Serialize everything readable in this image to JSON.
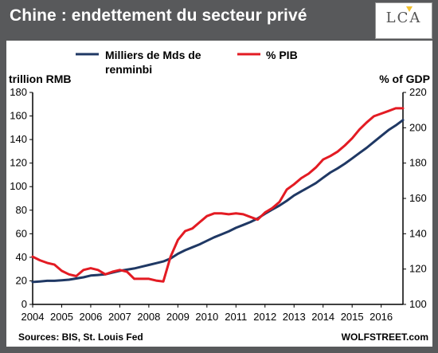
{
  "header": {
    "title": "Chine : endettement du secteur privé",
    "logo_text": "LCA"
  },
  "colors": {
    "frame": "#58595b",
    "series_debt": "#1f3864",
    "series_gdp": "#e31b23",
    "logo_accent": "#f2c12e"
  },
  "chart_data": {
    "type": "line",
    "title": "",
    "ylabel_left": "trillion RMB",
    "ylabel_right": "% of GDP",
    "xlabel": "",
    "ylim_left": [
      0,
      180
    ],
    "ylim_right": [
      100,
      220
    ],
    "yticks_left": [
      0,
      20,
      40,
      60,
      80,
      100,
      120,
      140,
      160,
      180
    ],
    "yticks_right": [
      100,
      120,
      140,
      160,
      180,
      200,
      220
    ],
    "xlim": [
      2004.0,
      2016.75
    ],
    "x_tick_labels": [
      "2004",
      "2005",
      "2006",
      "2007",
      "2008",
      "2009",
      "2010",
      "2011",
      "2012",
      "2013",
      "2014",
      "2015",
      "2016"
    ],
    "grid": false,
    "legend_position": "top",
    "source": "Sources: BIS, St. Louis Fed",
    "watermark": "WOLFSTREET.com",
    "series": [
      {
        "name": "Milliers de Mds de renminbi",
        "axis": "left",
        "color": "#1f3864",
        "x": [
          2004.0,
          2004.25,
          2004.5,
          2004.75,
          2005.0,
          2005.25,
          2005.5,
          2005.75,
          2006.0,
          2006.25,
          2006.5,
          2006.75,
          2007.0,
          2007.25,
          2007.5,
          2007.75,
          2008.0,
          2008.25,
          2008.5,
          2008.75,
          2009.0,
          2009.25,
          2009.5,
          2009.75,
          2010.0,
          2010.25,
          2010.5,
          2010.75,
          2011.0,
          2011.25,
          2011.5,
          2011.75,
          2012.0,
          2012.25,
          2012.5,
          2012.75,
          2013.0,
          2013.25,
          2013.5,
          2013.75,
          2014.0,
          2014.25,
          2014.5,
          2014.75,
          2015.0,
          2015.25,
          2015.5,
          2015.75,
          2016.0,
          2016.25,
          2016.5,
          2016.75
        ],
        "values": [
          19,
          19.5,
          20,
          20,
          20.5,
          21,
          22,
          23,
          24.5,
          25,
          25.5,
          27,
          28.5,
          29.5,
          30.5,
          32,
          33.5,
          35,
          36.5,
          39,
          43,
          46,
          48.5,
          51,
          54,
          57,
          59.5,
          62,
          65,
          67.5,
          70,
          73,
          77,
          80.5,
          84,
          88,
          92.5,
          96,
          99.5,
          103,
          107.5,
          112,
          115.5,
          119.5,
          124,
          128.5,
          133,
          138,
          143,
          148,
          152,
          156.5
        ]
      },
      {
        "name": "% PIB",
        "axis": "right",
        "color": "#e31b23",
        "x": [
          2004.0,
          2004.25,
          2004.5,
          2004.75,
          2005.0,
          2005.25,
          2005.5,
          2005.75,
          2006.0,
          2006.25,
          2006.5,
          2006.75,
          2007.0,
          2007.25,
          2007.5,
          2007.75,
          2008.0,
          2008.25,
          2008.5,
          2008.75,
          2009.0,
          2009.25,
          2009.5,
          2009.75,
          2010.0,
          2010.25,
          2010.5,
          2010.75,
          2011.0,
          2011.25,
          2011.5,
          2011.75,
          2012.0,
          2012.25,
          2012.5,
          2012.75,
          2013.0,
          2013.25,
          2013.5,
          2013.75,
          2014.0,
          2014.25,
          2014.5,
          2014.75,
          2015.0,
          2015.25,
          2015.5,
          2015.75,
          2016.0,
          2016.25,
          2016.5,
          2016.75
        ],
        "values": [
          127,
          125,
          123.5,
          122.5,
          119,
          117,
          116,
          119.5,
          120.5,
          119.5,
          117,
          118.5,
          119.5,
          118.5,
          114.5,
          114.5,
          114.5,
          113.5,
          113,
          127,
          136.5,
          141.5,
          143,
          146.5,
          150,
          151.5,
          151.5,
          151,
          151.5,
          151,
          149.5,
          148,
          152,
          154.5,
          158,
          165,
          168,
          171.5,
          174,
          177.5,
          182,
          184,
          186.5,
          190,
          194,
          199,
          203,
          206.5,
          208,
          209.5,
          211,
          211
        ]
      }
    ]
  }
}
